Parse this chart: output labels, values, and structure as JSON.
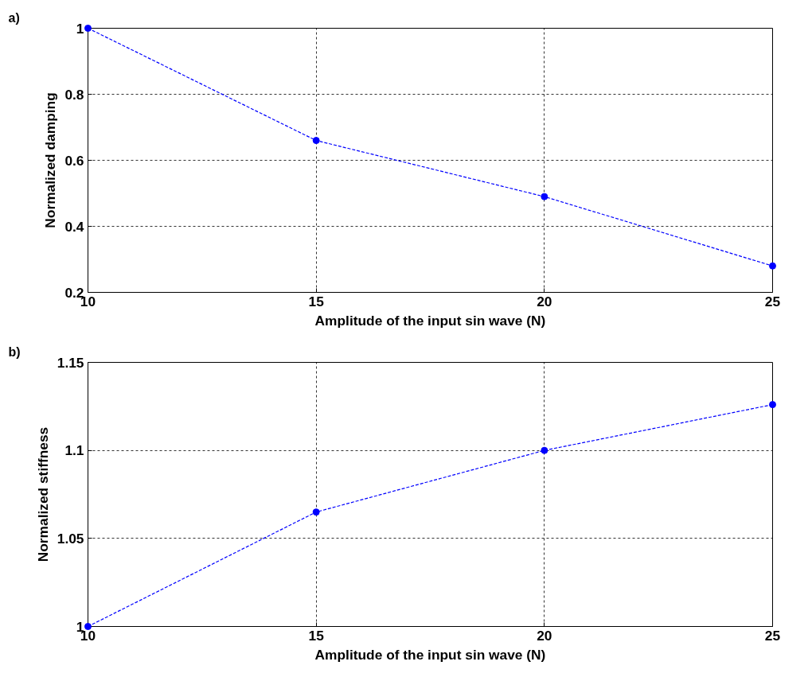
{
  "chart_data": [
    {
      "type": "line",
      "xlabel": "Amplitude of the input sin wave (N)",
      "ylabel": "Normalized damping",
      "annotations": [
        "a)"
      ],
      "x": [
        10,
        15,
        20,
        25
      ],
      "series": [
        {
          "color": "#0000ff",
          "values": [
            1,
            0.66,
            0.49,
            0.28
          ]
        }
      ],
      "xlim": [
        10,
        25
      ],
      "xticks": [
        10,
        15,
        20,
        25
      ],
      "ylim": [
        0.2,
        1
      ],
      "yticks": [
        0.2,
        0.4,
        0.6,
        0.8,
        1
      ],
      "grid": true,
      "marker": "circle",
      "line_style": "dashed"
    },
    {
      "type": "line",
      "xlabel": "Amplitude of the input sin wave (N)",
      "ylabel": "Normalized stiffness",
      "annotations": [
        "b)"
      ],
      "x": [
        10,
        15,
        20,
        25
      ],
      "series": [
        {
          "color": "#0000ff",
          "values": [
            1,
            1.065,
            1.1,
            1.126
          ]
        }
      ],
      "xlim": [
        10,
        25
      ],
      "xticks": [
        10,
        15,
        20,
        25
      ],
      "ylim": [
        1,
        1.15
      ],
      "yticks": [
        1,
        1.05,
        1.1,
        1.15
      ],
      "grid": true,
      "marker": "circle",
      "line_style": "dashed"
    }
  ]
}
